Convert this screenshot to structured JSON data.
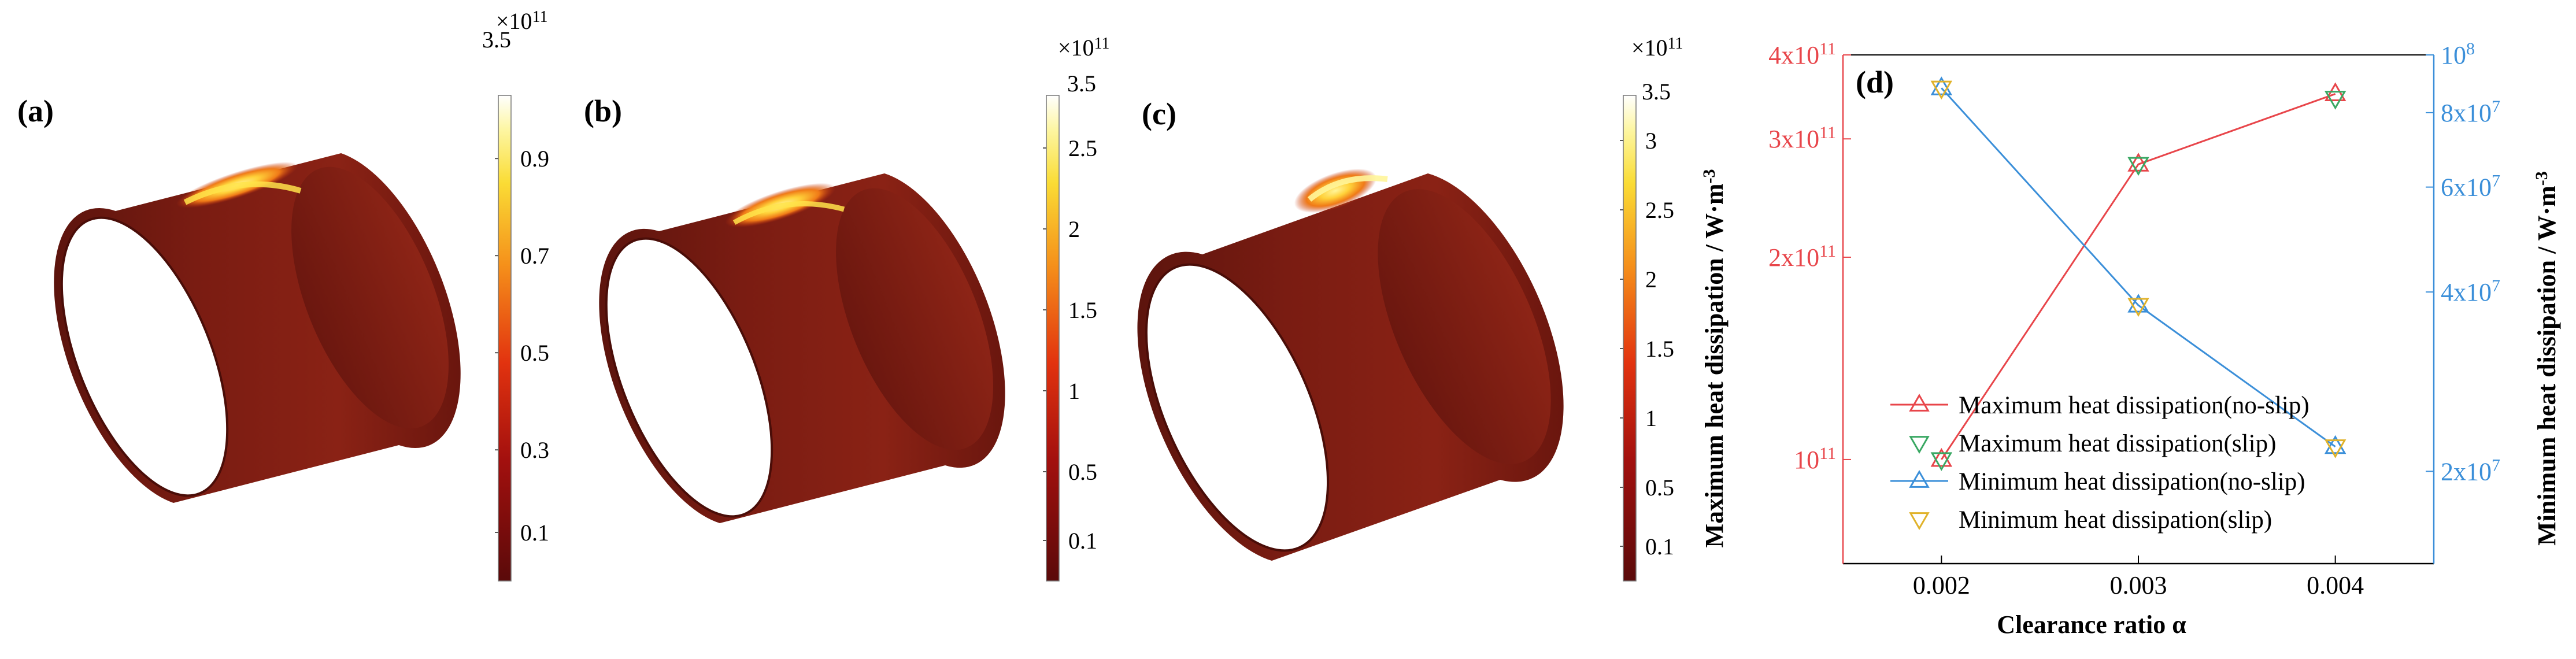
{
  "panels": [
    {
      "label": "(a)",
      "colorbar": {
        "multiplier": "×10",
        "exponent": "11",
        "top_label": "3.5",
        "ticks": [
          "0.9",
          "0.7",
          "0.5",
          "0.3",
          "0.1"
        ]
      }
    },
    {
      "label": "(b)",
      "colorbar": {
        "multiplier": "×10",
        "exponent": "11",
        "top_label": "3.5",
        "ticks": [
          "2.5",
          "2",
          "1.5",
          "1",
          "0.5",
          "0.1"
        ]
      }
    },
    {
      "label": "(c)",
      "colorbar": {
        "multiplier": "×10",
        "exponent": "11",
        "top_label": "3.5",
        "ticks": [
          "3",
          "2.5",
          "2",
          "1.5",
          "1",
          "0.5",
          "0.1"
        ]
      }
    }
  ],
  "colors": {
    "left_axis": "#e8454a",
    "right_axis": "#3b8fd9",
    "no_slip_max_line": "#e8454a",
    "no_slip_min_line": "#3b8fd9",
    "slip_max_marker": "#3aa863",
    "slip_min_marker": "#e0b22a",
    "cylinder_base": "#7a1a12",
    "hotspot": "#ffe34a"
  },
  "chart_data": {
    "type": "line",
    "panel_label": "(d)",
    "xlabel": "Clearance ratio α",
    "ylabel_left": "Maximum heat dissipation / W·m",
    "ylabel_left_exp": "-3",
    "ylabel_right": "Minimum heat dissipation / W·m",
    "ylabel_right_exp": "-3",
    "x": [
      0.002,
      0.003,
      0.004
    ],
    "x_ticks": [
      "0.002",
      "0.003",
      "0.004"
    ],
    "xlim": [
      0.0015,
      0.0045
    ],
    "y_left_scale": "log",
    "ylim_left": [
      70000000000,
      400000000000
    ],
    "y_left_ticks": [
      {
        "value": 100000000000,
        "base": "10",
        "exp": "11"
      },
      {
        "value": 200000000000,
        "base": "2x10",
        "exp": "11"
      },
      {
        "value": 300000000000,
        "base": "3x10",
        "exp": "11"
      },
      {
        "value": 400000000000,
        "base": "4x10",
        "exp": "11"
      }
    ],
    "y_right_scale": "log",
    "ylim_right": [
      14000000,
      100000000
    ],
    "y_right_ticks": [
      {
        "value": 20000000,
        "base": "2x10",
        "exp": "7"
      },
      {
        "value": 40000000,
        "base": "4x10",
        "exp": "7"
      },
      {
        "value": 60000000,
        "base": "6x10",
        "exp": "7"
      },
      {
        "value": 80000000,
        "base": "8x10",
        "exp": "7"
      },
      {
        "value": 100000000,
        "base": "10",
        "exp": "8"
      }
    ],
    "series": [
      {
        "name": "Maximum heat dissipation(no-slip)",
        "axis": "left",
        "marker": "triangle-up",
        "line": true,
        "color": "#e8454a",
        "values": [
          100000000000,
          275000000000,
          350000000000
        ]
      },
      {
        "name": "Maximum heat dissipation(slip)",
        "axis": "left",
        "marker": "triangle-down",
        "line": false,
        "color": "#3aa863",
        "values": [
          100000000000,
          275000000000,
          345000000000
        ]
      },
      {
        "name": "Minimum heat dissipation(no-slip)",
        "axis": "right",
        "marker": "triangle-up",
        "line": true,
        "color": "#3b8fd9",
        "values": [
          88000000,
          38000000,
          22000000
        ]
      },
      {
        "name": "Minimum heat dissipation(slip)",
        "axis": "right",
        "marker": "triangle-down",
        "line": false,
        "color": "#e0b22a",
        "values": [
          88000000,
          38000000,
          22000000
        ]
      }
    ],
    "legend_position": "bottom-right",
    "grid": false
  }
}
